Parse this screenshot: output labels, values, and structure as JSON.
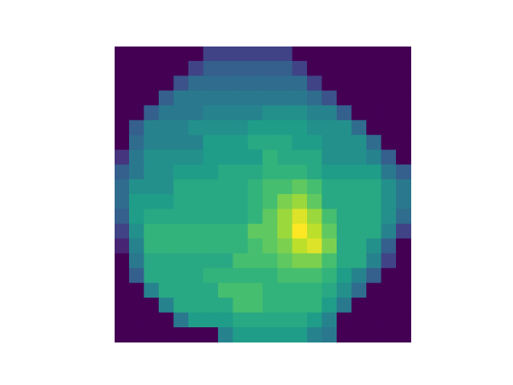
{
  "chart_data": {
    "type": "heatmap",
    "tick_labels": false,
    "zlim": [
      0,
      1
    ],
    "cells": [
      [
        0,
        0,
        0,
        0,
        0,
        0,
        0.2,
        0.2,
        0.2,
        0.2,
        0.2,
        0.2,
        0,
        0,
        0,
        0,
        0,
        0,
        0,
        0
      ],
      [
        0,
        0,
        0,
        0,
        0,
        0.2,
        0.3,
        0.3,
        0.3,
        0.3,
        0.3,
        0.3,
        0.2,
        0,
        0,
        0,
        0,
        0,
        0,
        0
      ],
      [
        0,
        0,
        0,
        0,
        0.25,
        0.35,
        0.35,
        0.35,
        0.35,
        0.35,
        0.35,
        0.35,
        0.35,
        0.2,
        0,
        0,
        0,
        0,
        0,
        0
      ],
      [
        0,
        0,
        0,
        0.3,
        0.4,
        0.4,
        0.4,
        0.4,
        0.4,
        0.4,
        0.4,
        0.4,
        0.4,
        0.35,
        0.25,
        0,
        0,
        0,
        0,
        0
      ],
      [
        0,
        0,
        0.3,
        0.4,
        0.4,
        0.4,
        0.45,
        0.45,
        0.45,
        0.45,
        0.5,
        0.5,
        0.5,
        0.45,
        0.45,
        0.3,
        0,
        0,
        0,
        0
      ],
      [
        0,
        0.3,
        0.45,
        0.45,
        0.45,
        0.5,
        0.5,
        0.5,
        0.5,
        0.55,
        0.55,
        0.55,
        0.55,
        0.5,
        0.5,
        0.5,
        0.35,
        0,
        0,
        0
      ],
      [
        0,
        0.35,
        0.45,
        0.45,
        0.45,
        0.45,
        0.55,
        0.55,
        0.55,
        0.6,
        0.6,
        0.6,
        0.55,
        0.55,
        0.5,
        0.5,
        0.5,
        0.35,
        0,
        0
      ],
      [
        0.15,
        0.4,
        0.5,
        0.5,
        0.5,
        0.5,
        0.55,
        0.55,
        0.55,
        0.55,
        0.65,
        0.6,
        0.6,
        0.6,
        0.5,
        0.5,
        0.5,
        0.45,
        0.3,
        0
      ],
      [
        0.3,
        0.4,
        0.5,
        0.5,
        0.55,
        0.55,
        0.55,
        0.6,
        0.6,
        0.6,
        0.65,
        0.65,
        0.65,
        0.6,
        0.55,
        0.55,
        0.55,
        0.55,
        0.4,
        0.3
      ],
      [
        0.35,
        0.5,
        0.5,
        0.5,
        0.6,
        0.6,
        0.6,
        0.6,
        0.6,
        0.65,
        0.7,
        0.7,
        0.75,
        0.7,
        0.6,
        0.6,
        0.6,
        0.6,
        0.5,
        0.4
      ],
      [
        0.35,
        0.55,
        0.55,
        0.55,
        0.6,
        0.6,
        0.6,
        0.6,
        0.6,
        0.65,
        0.7,
        0.8,
        0.85,
        0.75,
        0.6,
        0.6,
        0.6,
        0.6,
        0.5,
        0.4
      ],
      [
        0.3,
        0.55,
        0.6,
        0.6,
        0.6,
        0.6,
        0.6,
        0.6,
        0.6,
        0.65,
        0.75,
        0.85,
        0.95,
        0.85,
        0.7,
        0.6,
        0.6,
        0.6,
        0.5,
        0.35
      ],
      [
        0.2,
        0.5,
        0.65,
        0.65,
        0.65,
        0.65,
        0.65,
        0.65,
        0.65,
        0.75,
        0.75,
        0.85,
        1.0,
        0.9,
        0.75,
        0.6,
        0.6,
        0.6,
        0.45,
        0.2
      ],
      [
        0.1,
        0.45,
        0.65,
        0.65,
        0.65,
        0.65,
        0.65,
        0.65,
        0.65,
        0.7,
        0.75,
        0.8,
        0.9,
        0.95,
        0.8,
        0.6,
        0.6,
        0.5,
        0.3,
        0
      ],
      [
        0,
        0.4,
        0.6,
        0.6,
        0.6,
        0.6,
        0.6,
        0.6,
        0.7,
        0.7,
        0.7,
        0.75,
        0.8,
        0.8,
        0.7,
        0.6,
        0.6,
        0.45,
        0.2,
        0
      ],
      [
        0,
        0.3,
        0.6,
        0.6,
        0.6,
        0.6,
        0.65,
        0.65,
        0.65,
        0.65,
        0.65,
        0.7,
        0.7,
        0.7,
        0.65,
        0.55,
        0.45,
        0.3,
        0,
        0
      ],
      [
        0,
        0,
        0.45,
        0.6,
        0.6,
        0.6,
        0.6,
        0.7,
        0.7,
        0.7,
        0.65,
        0.65,
        0.65,
        0.65,
        0.6,
        0.5,
        0.35,
        0,
        0,
        0
      ],
      [
        0,
        0,
        0,
        0.45,
        0.6,
        0.6,
        0.6,
        0.6,
        0.7,
        0.7,
        0.65,
        0.65,
        0.65,
        0.65,
        0.55,
        0.4,
        0,
        0,
        0,
        0
      ],
      [
        0,
        0,
        0,
        0,
        0.4,
        0.55,
        0.55,
        0.55,
        0.6,
        0.6,
        0.6,
        0.6,
        0.6,
        0.55,
        0.45,
        0,
        0,
        0,
        0,
        0
      ],
      [
        0,
        0,
        0,
        0,
        0,
        0,
        0,
        0.45,
        0.55,
        0.55,
        0.55,
        0.55,
        0.55,
        0.45,
        0.4,
        0,
        0,
        0,
        0,
        0
      ]
    ]
  }
}
